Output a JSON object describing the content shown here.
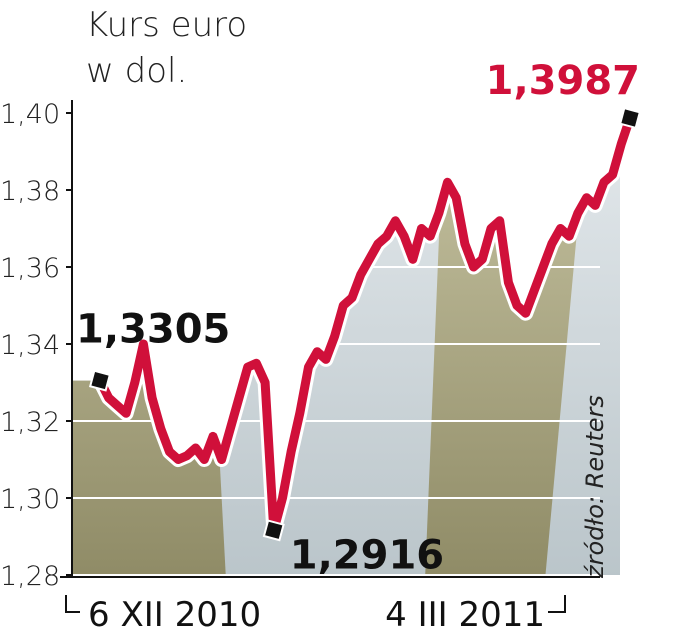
{
  "chart_data": {
    "type": "line",
    "title": [
      "Kurs euro",
      "w dol."
    ],
    "source": "źródło: Reuters",
    "categories": [
      "6 XII 2010",
      null,
      null,
      null,
      null,
      null,
      null,
      null,
      null,
      null,
      null,
      null,
      null,
      null,
      null,
      null,
      null,
      null,
      null,
      null,
      null,
      null,
      null,
      null,
      null,
      null,
      null,
      null,
      null,
      null,
      null,
      null,
      null,
      null,
      null,
      null,
      null,
      null,
      null,
      null,
      null,
      null,
      null,
      null,
      null,
      null,
      null,
      null,
      null,
      null,
      null,
      null,
      null,
      null,
      null,
      null,
      null,
      null,
      null,
      null,
      null,
      "4 III 2011"
    ],
    "values": [
      1.3305,
      1.326,
      1.324,
      1.322,
      1.33,
      1.34,
      1.326,
      1.318,
      1.312,
      1.31,
      1.311,
      1.313,
      1.31,
      1.316,
      1.31,
      1.318,
      1.326,
      1.334,
      1.335,
      1.33,
      1.2916,
      1.3,
      1.312,
      1.322,
      1.334,
      1.338,
      1.336,
      1.342,
      1.35,
      1.352,
      1.358,
      1.362,
      1.366,
      1.368,
      1.372,
      1.368,
      1.362,
      1.37,
      1.368,
      1.374,
      1.382,
      1.378,
      1.366,
      1.36,
      1.362,
      1.37,
      1.372,
      1.356,
      1.35,
      1.348,
      1.354,
      1.36,
      1.366,
      1.37,
      1.368,
      1.374,
      1.378,
      1.376,
      1.382,
      1.384,
      1.392,
      1.3987
    ],
    "value_labels": [
      "1,3305",
      null,
      null,
      null,
      null,
      null,
      null,
      null,
      null,
      null,
      null,
      null,
      null,
      null,
      null,
      null,
      null,
      null,
      null,
      null,
      "1,2916",
      null,
      null,
      null,
      null,
      null,
      null,
      null,
      null,
      null,
      null,
      null,
      null,
      null,
      null,
      null,
      null,
      null,
      null,
      null,
      null,
      null,
      null,
      null,
      null,
      null,
      null,
      null,
      null,
      null,
      null,
      null,
      null,
      null,
      null,
      null,
      null,
      null,
      null,
      null,
      null,
      "1,3987"
    ],
    "color": "#d0103a",
    "ylim": [
      1.28,
      1.4
    ],
    "yticks": [
      {
        "value": 1.28,
        "label": "1,28"
      },
      {
        "value": 1.3,
        "label": "1,30"
      },
      {
        "value": 1.32,
        "label": "1,32"
      },
      {
        "value": 1.34,
        "label": "1,34"
      },
      {
        "value": 1.36,
        "label": "1,36"
      },
      {
        "value": 1.38,
        "label": "1,38"
      },
      {
        "value": 1.4,
        "label": "1,40"
      }
    ],
    "grid": true
  }
}
